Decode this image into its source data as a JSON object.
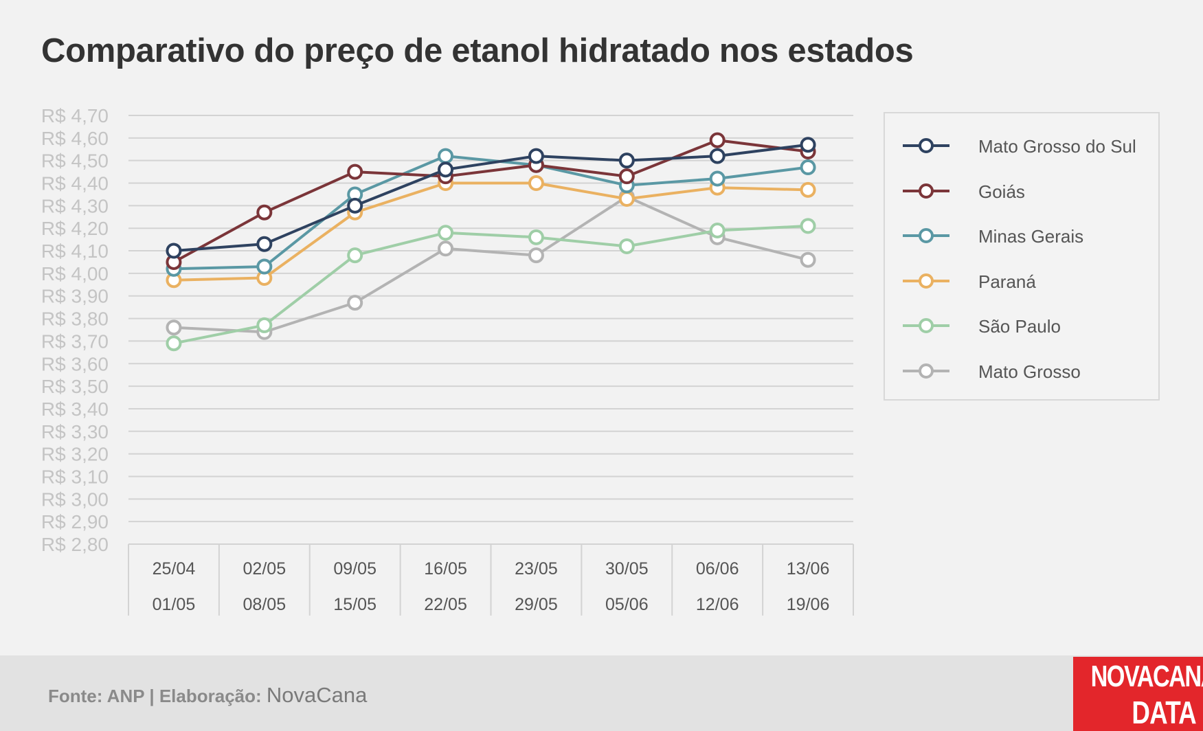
{
  "title": "Comparativo do preço de etanol hidratado nos estados",
  "footer": {
    "source": "Fonte: ANP | Elaboração:",
    "brand": "NovaCana"
  },
  "logo": {
    "line1": "NOVACANA",
    "line2": "DATA"
  },
  "chart_data": {
    "type": "line",
    "title": "Comparativo do preço de etanol hidratado nos estados",
    "ylim": [
      2.8,
      4.7
    ],
    "y_ticks": [
      "R$ 4,70",
      "R$ 4,60",
      "R$ 4,50",
      "R$ 4,40",
      "R$ 4,30",
      "R$ 4,20",
      "R$ 4,10",
      "R$ 4,00",
      "R$ 3,90",
      "R$ 3,80",
      "R$ 3,70",
      "R$ 3,60",
      "R$ 3,50",
      "R$ 3,40",
      "R$ 3,30",
      "R$ 3,20",
      "R$ 3,10",
      "R$ 3,00",
      "R$ 2,90",
      "R$ 2,80"
    ],
    "y_tick_values": [
      4.7,
      4.6,
      4.5,
      4.4,
      4.3,
      4.2,
      4.1,
      4.0,
      3.9,
      3.8,
      3.7,
      3.6,
      3.5,
      3.4,
      3.3,
      3.2,
      3.1,
      3.0,
      2.9,
      2.8
    ],
    "categories": [
      {
        "start": "25/04",
        "end": "01/05"
      },
      {
        "start": "02/05",
        "end": "08/05"
      },
      {
        "start": "09/05",
        "end": "15/05"
      },
      {
        "start": "16/05",
        "end": "22/05"
      },
      {
        "start": "23/05",
        "end": "29/05"
      },
      {
        "start": "30/05",
        "end": "05/06"
      },
      {
        "start": "06/06",
        "end": "12/06"
      },
      {
        "start": "13/06",
        "end": "19/06"
      }
    ],
    "grid": true,
    "legend_position": "right",
    "series": [
      {
        "name": "Mato Grosso do Sul",
        "color": "#2e4260",
        "values": [
          4.1,
          4.13,
          4.3,
          4.46,
          4.52,
          4.5,
          4.52,
          4.57
        ]
      },
      {
        "name": "Goiás",
        "color": "#7b3539",
        "values": [
          4.05,
          4.27,
          4.45,
          4.43,
          4.48,
          4.43,
          4.59,
          4.54
        ]
      },
      {
        "name": "Minas Gerais",
        "color": "#5a98a4",
        "values": [
          4.02,
          4.03,
          4.35,
          4.52,
          4.48,
          4.39,
          4.42,
          4.47
        ]
      },
      {
        "name": "Paraná",
        "color": "#eab161",
        "values": [
          3.97,
          3.98,
          4.27,
          4.4,
          4.4,
          4.33,
          4.38,
          4.37
        ]
      },
      {
        "name": "São Paulo",
        "color": "#9fcea7",
        "values": [
          3.69,
          3.77,
          4.08,
          4.18,
          4.16,
          4.12,
          4.19,
          4.21
        ]
      },
      {
        "name": "Mato Grosso",
        "color": "#b3b3b3",
        "values": [
          3.76,
          3.74,
          3.87,
          4.11,
          4.08,
          4.34,
          4.16,
          4.06
        ]
      }
    ]
  }
}
